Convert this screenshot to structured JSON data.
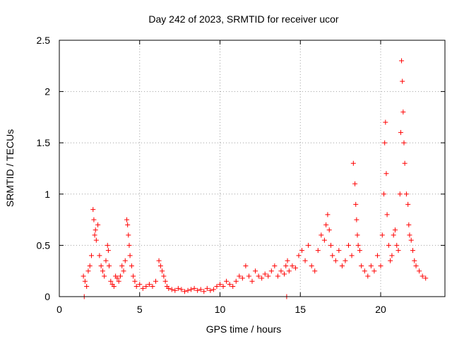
{
  "chart_data": {
    "type": "scatter",
    "title": "Day 242 of 2023, SRMTID for receiver ucor",
    "xlabel": "GPS time / hours",
    "ylabel": "SRMTID / TECUs",
    "xlim": [
      0,
      24
    ],
    "ylim": [
      0,
      2.5
    ],
    "x_ticks": [
      0,
      5,
      10,
      15,
      20
    ],
    "x_tick_labels": [
      "0",
      "5",
      "10",
      "15",
      "20"
    ],
    "y_ticks": [
      0,
      0.5,
      1,
      1.5,
      2,
      2.5
    ],
    "y_tick_labels": [
      "0",
      "0.5",
      "1",
      "1.5",
      "2",
      "2.5"
    ],
    "grid": true,
    "marker": "+",
    "color": "#ff0000",
    "series": [
      {
        "name": "SRMTID",
        "x": [
          1.5,
          1.6,
          1.7,
          1.8,
          1.9,
          2.0,
          2.1,
          2.15,
          2.2,
          2.25,
          2.3,
          2.4,
          2.5,
          2.6,
          2.7,
          2.8,
          2.9,
          3.0,
          3.05,
          3.1,
          3.2,
          3.3,
          3.4,
          3.5,
          3.6,
          3.7,
          3.8,
          3.9,
          4.0,
          4.1,
          4.2,
          4.25,
          4.3,
          4.35,
          4.4,
          4.5,
          4.6,
          4.7,
          4.8,
          5.0,
          5.2,
          5.4,
          5.6,
          5.8,
          6.0,
          6.2,
          6.3,
          6.4,
          6.5,
          6.6,
          6.7,
          6.8,
          7.0,
          7.2,
          7.4,
          7.6,
          7.8,
          8.0,
          8.2,
          8.4,
          8.6,
          8.8,
          9.0,
          9.2,
          9.4,
          9.6,
          9.8,
          10.0,
          10.2,
          10.4,
          10.6,
          10.8,
          11.0,
          11.2,
          11.4,
          11.6,
          11.8,
          12.0,
          12.2,
          12.4,
          12.6,
          12.8,
          13.0,
          13.2,
          13.4,
          13.6,
          13.8,
          14.0,
          14.1,
          14.2,
          14.3,
          14.5,
          14.7,
          14.9,
          15.1,
          15.3,
          15.5,
          15.7,
          15.9,
          16.1,
          16.3,
          16.5,
          16.6,
          16.7,
          16.8,
          16.9,
          17.0,
          17.2,
          17.4,
          17.6,
          17.8,
          18.0,
          18.2,
          18.3,
          18.4,
          18.45,
          18.5,
          18.55,
          18.6,
          18.7,
          18.8,
          19.0,
          19.2,
          19.4,
          19.6,
          19.8,
          20.0,
          20.1,
          20.2,
          20.25,
          20.3,
          20.35,
          20.4,
          20.5,
          20.6,
          20.7,
          20.8,
          20.9,
          21.0,
          21.1,
          21.2,
          21.25,
          21.3,
          21.35,
          21.4,
          21.45,
          21.5,
          21.6,
          21.7,
          21.75,
          21.8,
          21.9,
          22.0,
          22.1,
          22.2,
          22.4,
          22.6,
          22.8,
          14.15,
          1.55
        ],
        "y": [
          0.2,
          0.15,
          0.1,
          0.25,
          0.3,
          0.4,
          0.85,
          0.75,
          0.6,
          0.65,
          0.55,
          0.7,
          0.4,
          0.3,
          0.25,
          0.2,
          0.35,
          0.5,
          0.45,
          0.3,
          0.15,
          0.12,
          0.1,
          0.2,
          0.18,
          0.15,
          0.2,
          0.3,
          0.25,
          0.35,
          0.75,
          0.7,
          0.6,
          0.5,
          0.4,
          0.3,
          0.2,
          0.15,
          0.1,
          0.12,
          0.08,
          0.1,
          0.12,
          0.1,
          0.15,
          0.35,
          0.3,
          0.25,
          0.2,
          0.15,
          0.1,
          0.08,
          0.07,
          0.06,
          0.08,
          0.07,
          0.05,
          0.06,
          0.07,
          0.08,
          0.06,
          0.07,
          0.05,
          0.08,
          0.06,
          0.07,
          0.1,
          0.12,
          0.1,
          0.15,
          0.12,
          0.1,
          0.15,
          0.2,
          0.18,
          0.3,
          0.2,
          0.15,
          0.25,
          0.2,
          0.18,
          0.22,
          0.2,
          0.25,
          0.3,
          0.2,
          0.25,
          0.22,
          0.3,
          0.35,
          0.25,
          0.3,
          0.28,
          0.4,
          0.45,
          0.35,
          0.5,
          0.3,
          0.25,
          0.45,
          0.6,
          0.55,
          0.7,
          0.8,
          0.65,
          0.5,
          0.4,
          0.35,
          0.45,
          0.3,
          0.35,
          0.5,
          0.4,
          1.3,
          1.1,
          0.9,
          0.75,
          0.6,
          0.5,
          0.45,
          0.3,
          0.25,
          0.2,
          0.3,
          0.25,
          0.4,
          0.3,
          0.6,
          1.0,
          1.5,
          1.7,
          1.2,
          0.8,
          0.5,
          0.35,
          0.4,
          0.6,
          0.65,
          0.5,
          0.45,
          1.0,
          1.6,
          2.3,
          2.1,
          1.8,
          1.5,
          1.3,
          1.0,
          0.9,
          0.7,
          0.6,
          0.55,
          0.45,
          0.35,
          0.3,
          0.25,
          0.2,
          0.18,
          0.0,
          0.0
        ]
      }
    ]
  }
}
